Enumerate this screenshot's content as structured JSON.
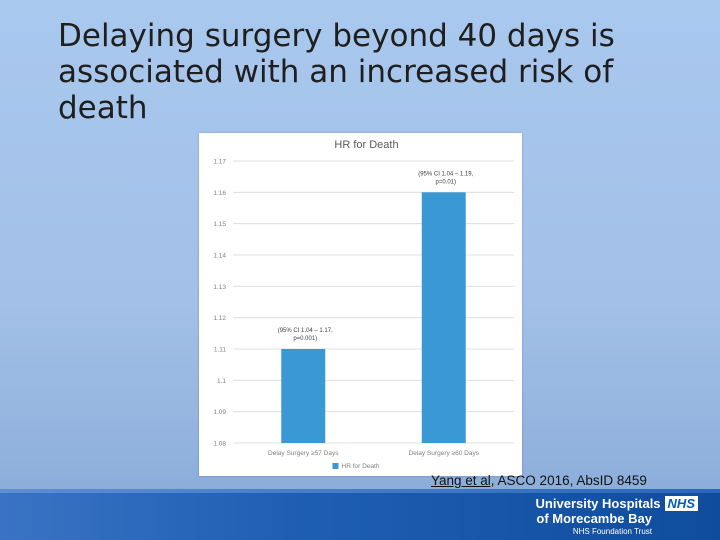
{
  "slide": {
    "title": "Delaying surgery beyond 40 days is associated with an increased risk of death"
  },
  "citation": {
    "authors": "Yang et al,",
    "source": " ASCO 2016, AbsID 8459"
  },
  "footer": {
    "org_line1": "University Hospitals",
    "nhs_logo": "NHS",
    "org_line2": "of Morecambe Bay",
    "org_line3": "NHS Foundation Trust"
  },
  "colors": {
    "bar": "#3a98d4",
    "grid": "#d9d9d9",
    "nhs_blue": "#005eb8"
  },
  "chart_data": {
    "type": "bar",
    "title": "HR for Death",
    "categories": [
      "Delay Surgery ≥57 Days",
      "Delay Surgery ≥60 Days"
    ],
    "series": [
      {
        "name": "HR for Death",
        "values": [
          1.11,
          1.16
        ]
      }
    ],
    "data_labels": [
      [
        "(95% CI 1.04 – 1.17,",
        "p=0.001)"
      ],
      [
        "(95% CI 1.04 – 1.19,",
        "p=0.01)"
      ]
    ],
    "yticks": [
      "1.17",
      "1.16",
      "1.15",
      "1.14",
      "1.13",
      "1.12",
      "1.11",
      "1.1",
      "1.09",
      "1.08"
    ],
    "ylim": [
      1.08,
      1.17
    ],
    "grid": true,
    "legend": "bottom",
    "xlabel": "",
    "ylabel": ""
  }
}
